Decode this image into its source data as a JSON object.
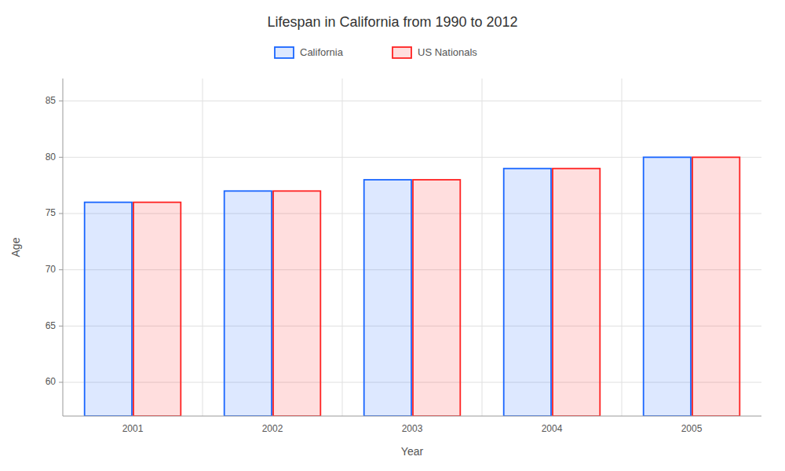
{
  "chart_data": {
    "type": "bar",
    "title": "Lifespan in California from 1990 to 2012",
    "x_label": "Year",
    "y_label": "Age",
    "categories": [
      "2001",
      "2002",
      "2003",
      "2004",
      "2005"
    ],
    "series": [
      {
        "name": "California",
        "color": "#1a66ff",
        "values": [
          76,
          77,
          78,
          79,
          80
        ]
      },
      {
        "name": "US Nationals",
        "color": "#ff2222",
        "values": [
          76,
          77,
          78,
          79,
          80
        ]
      }
    ],
    "ylim": [
      57,
      87
    ],
    "yticks": [
      60,
      65,
      70,
      75,
      80,
      85
    ],
    "grid": true,
    "legend": "top"
  }
}
